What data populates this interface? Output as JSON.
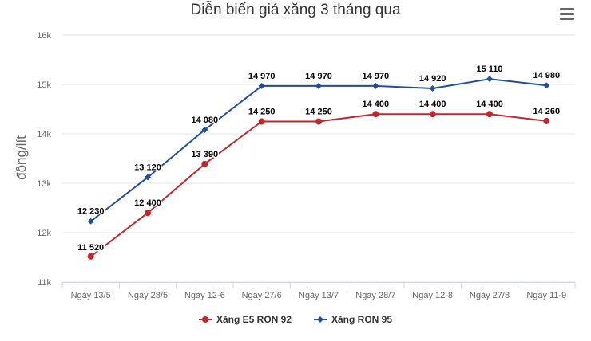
{
  "chart_data": {
    "type": "line",
    "title": "Diễn biến giá xăng 3 tháng qua",
    "ylabel": "đồng/lít",
    "xlabel": "",
    "categories": [
      "Ngày 13/5",
      "Ngày 28/5",
      "Ngày 12-6",
      "Ngày 27/6",
      "Ngày 13/7",
      "Ngày 28/7",
      "Ngày 12-8",
      "Ngày 27/8",
      "Ngày 11-9"
    ],
    "ylim": [
      11000,
      16000
    ],
    "yticks": [
      11000,
      12000,
      13000,
      14000,
      15000,
      16000
    ],
    "ytick_labels": [
      "11k",
      "12k",
      "13k",
      "14k",
      "15k",
      "16k"
    ],
    "grid": "horizontal",
    "legend_position": "bottom",
    "series": [
      {
        "name": "Xăng E5 RON 92",
        "color": "#c1272d",
        "marker": "circle",
        "values": [
          11520,
          12400,
          13390,
          14250,
          14250,
          14400,
          14400,
          14400,
          14260
        ],
        "labels": [
          "11 520",
          "12 400",
          "13 390",
          "14 250",
          "14 250",
          "14 400",
          "14 400",
          "14 400",
          "14 260"
        ]
      },
      {
        "name": "Xăng RON 95",
        "color": "#1f4e9e",
        "marker": "diamond",
        "values": [
          12230,
          13120,
          14080,
          14970,
          14970,
          14970,
          14920,
          15110,
          14980
        ],
        "labels": [
          "12 230",
          "13 120",
          "14 080",
          "14 970",
          "14 970",
          "14 970",
          "14 920",
          "15 110",
          "14 980"
        ]
      }
    ]
  },
  "menu_icon": "hamburger-menu-icon"
}
